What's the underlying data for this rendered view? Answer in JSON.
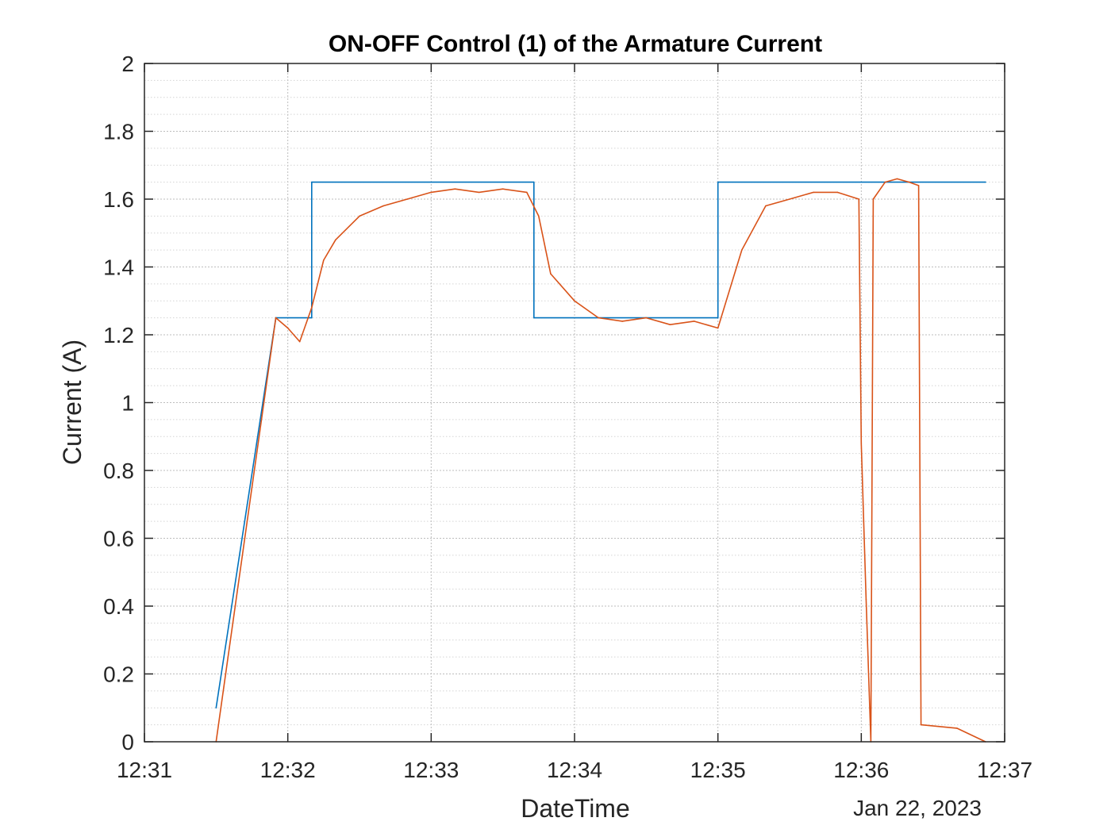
{
  "chart_data": {
    "type": "line",
    "title": "ON-OFF Control (1) of the Armature Current",
    "xlabel": "DateTime",
    "ylabel": "Current (A)",
    "date_label": "Jan 22, 2023",
    "x_ticks": [
      "12:31",
      "12:32",
      "12:33",
      "12:34",
      "12:35",
      "12:36",
      "12:37"
    ],
    "y_ticks": [
      "0",
      "0.2",
      "0.4",
      "0.6",
      "0.8",
      "1",
      "1.2",
      "1.4",
      "1.6",
      "1.8",
      "2"
    ],
    "xlim": [
      "12:31:00",
      "12:37:00"
    ],
    "ylim": [
      0,
      2
    ],
    "grid": "on",
    "minor_grid": "on",
    "series": [
      {
        "color": "#0072BD",
        "x": [
          "12:31:30",
          "12:31:55",
          "12:32:10",
          "12:32:10",
          "12:33:43",
          "12:33:43",
          "12:35:00",
          "12:35:00",
          "12:36:52"
        ],
        "y": [
          0.1,
          1.25,
          1.25,
          1.65,
          1.65,
          1.25,
          1.25,
          1.65,
          1.65
        ]
      },
      {
        "color": "#D95319",
        "x": [
          "12:31:30",
          "12:31:55",
          "12:32:00",
          "12:32:05",
          "12:32:10",
          "12:32:15",
          "12:32:20",
          "12:32:30",
          "12:32:40",
          "12:32:50",
          "12:33:00",
          "12:33:10",
          "12:33:20",
          "12:33:30",
          "12:33:40",
          "12:33:45",
          "12:33:50",
          "12:34:00",
          "12:34:10",
          "12:34:20",
          "12:34:30",
          "12:34:40",
          "12:34:50",
          "12:35:00",
          "12:35:10",
          "12:35:20",
          "12:35:30",
          "12:35:40",
          "12:35:50",
          "12:35:59",
          "12:36:00",
          "12:36:02",
          "12:36:04",
          "12:36:05",
          "12:36:10",
          "12:36:15",
          "12:36:20",
          "12:36:24",
          "12:36:25",
          "12:36:40",
          "12:36:52"
        ],
        "y": [
          0.0,
          1.25,
          1.22,
          1.18,
          1.28,
          1.42,
          1.48,
          1.55,
          1.58,
          1.6,
          1.62,
          1.63,
          1.62,
          1.63,
          1.62,
          1.55,
          1.38,
          1.3,
          1.25,
          1.24,
          1.25,
          1.23,
          1.24,
          1.22,
          1.45,
          1.58,
          1.6,
          1.62,
          1.62,
          1.6,
          0.88,
          0.42,
          0.0,
          1.6,
          1.65,
          1.66,
          1.65,
          1.64,
          0.05,
          0.04,
          0.0
        ]
      }
    ]
  }
}
